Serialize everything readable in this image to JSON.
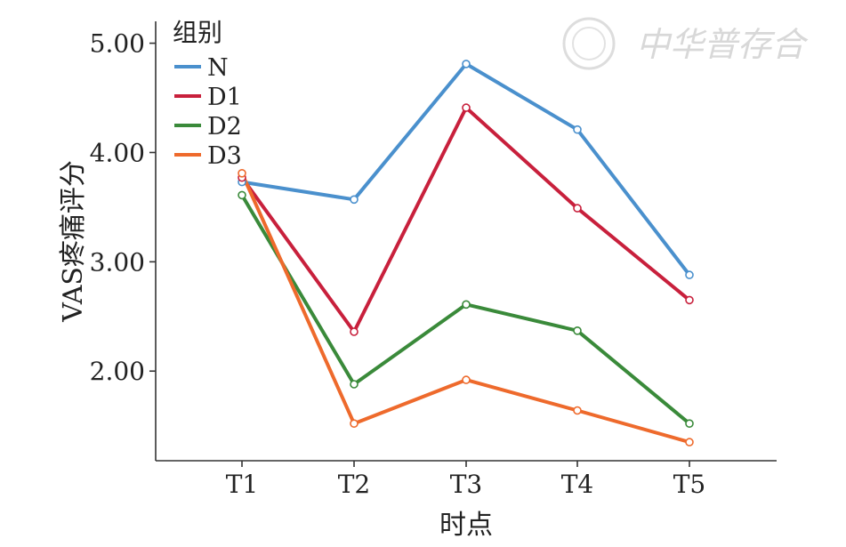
{
  "chart_data": {
    "type": "line",
    "categories": [
      "T1",
      "T2",
      "T3",
      "T4",
      "T5"
    ],
    "series": [
      {
        "name": "N",
        "color": "#4a90cd",
        "values": [
          3.73,
          3.57,
          4.81,
          4.21,
          2.88
        ]
      },
      {
        "name": "D1",
        "color": "#c8203c",
        "values": [
          3.77,
          2.36,
          4.41,
          3.49,
          2.65
        ]
      },
      {
        "name": "D2",
        "color": "#3a8a3a",
        "values": [
          3.61,
          1.88,
          2.61,
          2.37,
          1.52
        ]
      },
      {
        "name": "D3",
        "color": "#ee6a2c",
        "values": [
          3.81,
          1.52,
          1.92,
          1.64,
          1.35
        ]
      }
    ],
    "title": "",
    "xlabel": "时点",
    "ylabel": "VAS疼痛评分",
    "ylim": [
      1.18,
      5.2
    ],
    "yticks": [
      2.0,
      3.0,
      4.0,
      5.0
    ],
    "ytick_labels": [
      "2.00",
      "3.00",
      "4.00",
      "5.00"
    ],
    "legend": {
      "title": "组别",
      "position": "top-left"
    },
    "grid": false,
    "watermark": "中华普存合"
  }
}
